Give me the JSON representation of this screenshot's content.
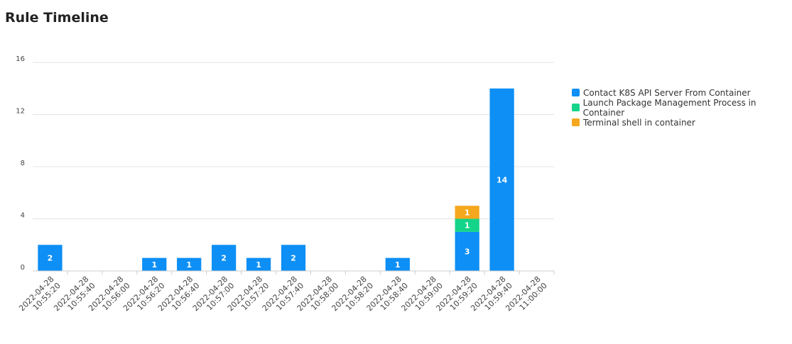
{
  "page": {
    "title": "Rule Timeline"
  },
  "chart_data": {
    "type": "bar",
    "stacked": true,
    "title": "Rule Timeline",
    "xlabel": "",
    "ylabel": "",
    "ylim": [
      0,
      16
    ],
    "yticks": [
      0,
      4,
      8,
      12,
      16
    ],
    "grid": true,
    "legend_position": "right",
    "categories": [
      [
        "2022-04-28",
        "10:55:20"
      ],
      [
        "2022-04-28",
        "10:55:40"
      ],
      [
        "2022-04-28",
        "10:56:00"
      ],
      [
        "2022-04-28",
        "10:56:20"
      ],
      [
        "2022-04-28",
        "10:56:40"
      ],
      [
        "2022-04-28",
        "10:57:00"
      ],
      [
        "2022-04-28",
        "10:57:20"
      ],
      [
        "2022-04-28",
        "10:57:40"
      ],
      [
        "2022-04-28",
        "10:58:00"
      ],
      [
        "2022-04-28",
        "10:58:20"
      ],
      [
        "2022-04-28",
        "10:58:40"
      ],
      [
        "2022-04-28",
        "10:59:00"
      ],
      [
        "2022-04-28",
        "10:59:20"
      ],
      [
        "2022-04-28",
        "10:59:40"
      ],
      [
        "2022-04-28",
        "11:00:00"
      ]
    ],
    "series": [
      {
        "name": "Contact K8S API Server From Container",
        "color": "#0d8ff5",
        "values": [
          2,
          0,
          0,
          1,
          1,
          2,
          1,
          2,
          0,
          0,
          1,
          0,
          3,
          14,
          0
        ]
      },
      {
        "name": "Launch Package Management Process in Container",
        "color": "#14d48a",
        "values": [
          0,
          0,
          0,
          0,
          0,
          0,
          0,
          0,
          0,
          0,
          0,
          0,
          1,
          0,
          0
        ]
      },
      {
        "name": "Terminal shell in container",
        "color": "#f5a81e",
        "values": [
          0,
          0,
          0,
          0,
          0,
          0,
          0,
          0,
          0,
          0,
          0,
          0,
          1,
          0,
          0
        ]
      }
    ]
  }
}
